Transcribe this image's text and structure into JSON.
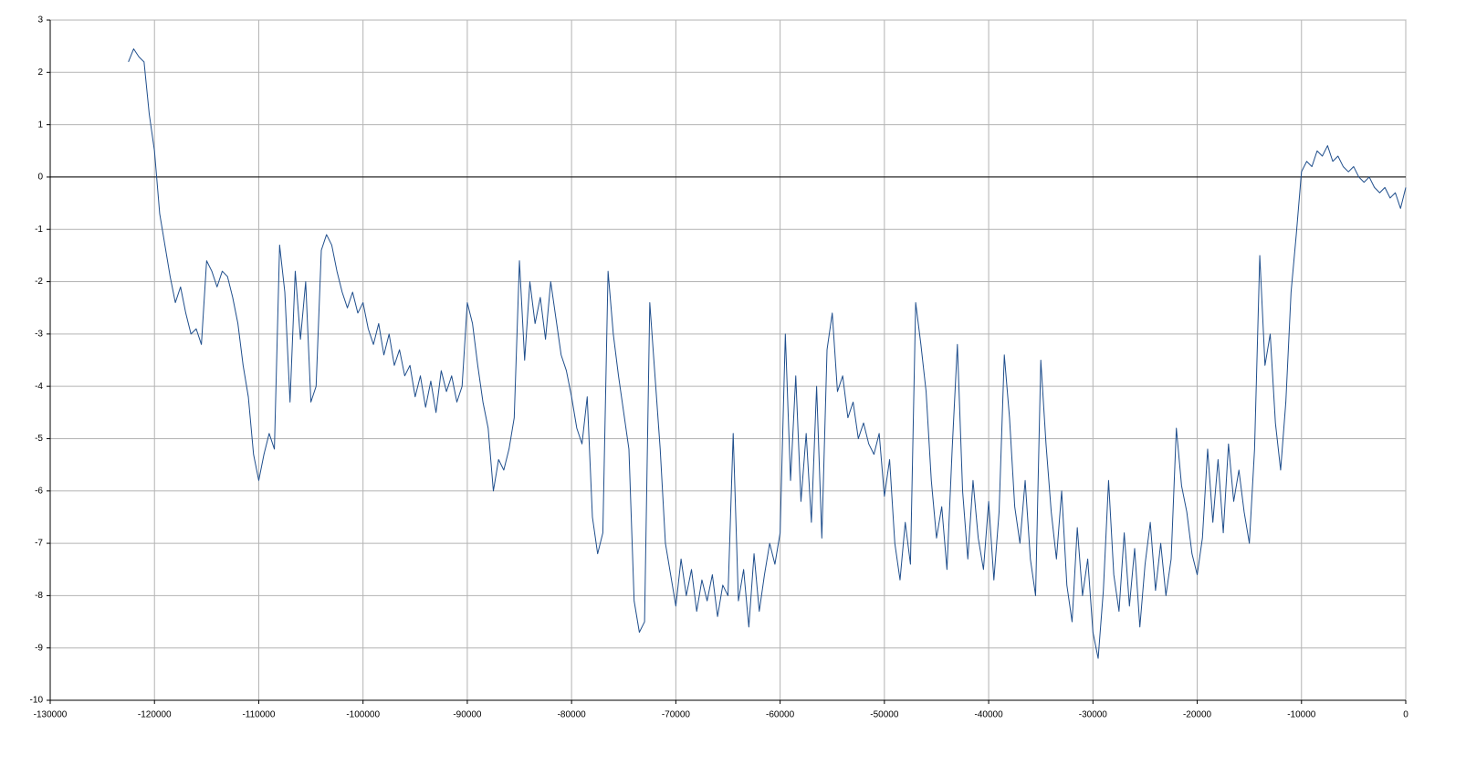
{
  "chart_data": {
    "type": "line",
    "xlim": [
      -130000,
      0
    ],
    "ylim": [
      -10,
      3
    ],
    "xticks": [
      -130000,
      -120000,
      -110000,
      -100000,
      -90000,
      -80000,
      -70000,
      -60000,
      -50000,
      -40000,
      -30000,
      -20000,
      -10000,
      0
    ],
    "yticks": [
      -10,
      -9,
      -8,
      -7,
      -6,
      -5,
      -4,
      -3,
      -2,
      -1,
      0,
      1,
      2,
      3
    ],
    "grid": true,
    "x": [
      -122500,
      -122000,
      -121500,
      -121000,
      -120500,
      -120000,
      -119500,
      -119000,
      -118500,
      -118000,
      -117500,
      -117000,
      -116500,
      -116000,
      -115500,
      -115000,
      -114500,
      -114000,
      -113500,
      -113000,
      -112500,
      -112000,
      -111500,
      -111000,
      -110500,
      -110000,
      -109500,
      -109000,
      -108500,
      -108000,
      -107500,
      -107000,
      -106500,
      -106000,
      -105500,
      -105000,
      -104500,
      -104000,
      -103500,
      -103000,
      -102500,
      -102000,
      -101500,
      -101000,
      -100500,
      -100000,
      -99500,
      -99000,
      -98500,
      -98000,
      -97500,
      -97000,
      -96500,
      -96000,
      -95500,
      -95000,
      -94500,
      -94000,
      -93500,
      -93000,
      -92500,
      -92000,
      -91500,
      -91000,
      -90500,
      -90000,
      -89500,
      -89000,
      -88500,
      -88000,
      -87500,
      -87000,
      -86500,
      -86000,
      -85500,
      -85000,
      -84500,
      -84000,
      -83500,
      -83000,
      -82500,
      -82000,
      -81500,
      -81000,
      -80500,
      -80000,
      -79500,
      -79000,
      -78500,
      -78000,
      -77500,
      -77000,
      -76500,
      -76000,
      -75500,
      -75000,
      -74500,
      -74000,
      -73500,
      -73000,
      -72500,
      -72000,
      -71500,
      -71000,
      -70500,
      -70000,
      -69500,
      -69000,
      -68500,
      -68000,
      -67500,
      -67000,
      -66500,
      -66000,
      -65500,
      -65000,
      -64500,
      -64000,
      -63500,
      -63000,
      -62500,
      -62000,
      -61500,
      -61000,
      -60500,
      -60000,
      -59500,
      -59000,
      -58500,
      -58000,
      -57500,
      -57000,
      -56500,
      -56000,
      -55500,
      -55000,
      -54500,
      -54000,
      -53500,
      -53000,
      -52500,
      -52000,
      -51500,
      -51000,
      -50500,
      -50000,
      -49500,
      -49000,
      -48500,
      -48000,
      -47500,
      -47000,
      -46500,
      -46000,
      -45500,
      -45000,
      -44500,
      -44000,
      -43500,
      -43000,
      -42500,
      -42000,
      -41500,
      -41000,
      -40500,
      -40000,
      -39500,
      -39000,
      -38500,
      -38000,
      -37500,
      -37000,
      -36500,
      -36000,
      -35500,
      -35000,
      -34500,
      -34000,
      -33500,
      -33000,
      -32500,
      -32000,
      -31500,
      -31000,
      -30500,
      -30000,
      -29500,
      -29000,
      -28500,
      -28000,
      -27500,
      -27000,
      -26500,
      -26000,
      -25500,
      -25000,
      -24500,
      -24000,
      -23500,
      -23000,
      -22500,
      -22000,
      -21500,
      -21000,
      -20500,
      -20000,
      -19500,
      -19000,
      -18500,
      -18000,
      -17500,
      -17000,
      -16500,
      -16000,
      -15500,
      -15000,
      -14500,
      -14000,
      -13500,
      -13000,
      -12500,
      -12000,
      -11500,
      -11000,
      -10500,
      -10000,
      -9500,
      -9000,
      -8500,
      -8000,
      -7500,
      -7000,
      -6500,
      -6000,
      -5500,
      -5000,
      -4500,
      -4000,
      -3500,
      -3000,
      -2500,
      -2000,
      -1500,
      -1000,
      -500,
      0
    ],
    "series": [
      {
        "color": "#1f4e8c",
        "values": [
          2.2,
          2.45,
          2.3,
          2.2,
          1.2,
          0.5,
          -0.7,
          -1.3,
          -1.9,
          -2.4,
          -2.1,
          -2.6,
          -3.0,
          -2.9,
          -3.2,
          -1.6,
          -1.8,
          -2.1,
          -1.8,
          -1.9,
          -2.3,
          -2.8,
          -3.6,
          -4.2,
          -5.3,
          -5.8,
          -5.3,
          -4.9,
          -5.2,
          -1.3,
          -2.2,
          -4.3,
          -1.8,
          -3.1,
          -2.0,
          -4.3,
          -4.0,
          -1.4,
          -1.1,
          -1.3,
          -1.8,
          -2.2,
          -2.5,
          -2.2,
          -2.6,
          -2.4,
          -2.9,
          -3.2,
          -2.8,
          -3.4,
          -3.0,
          -3.6,
          -3.3,
          -3.8,
          -3.6,
          -4.2,
          -3.8,
          -4.4,
          -3.9,
          -4.5,
          -3.7,
          -4.1,
          -3.8,
          -4.3,
          -4.0,
          -2.4,
          -2.8,
          -3.6,
          -4.3,
          -4.8,
          -6.0,
          -5.4,
          -5.6,
          -5.2,
          -4.6,
          -1.6,
          -3.5,
          -2.0,
          -2.8,
          -2.3,
          -3.1,
          -2.0,
          -2.7,
          -3.4,
          -3.7,
          -4.2,
          -4.8,
          -5.1,
          -4.2,
          -6.5,
          -7.2,
          -6.8,
          -1.8,
          -3.0,
          -3.8,
          -4.5,
          -5.2,
          -8.1,
          -8.7,
          -8.5,
          -2.4,
          -3.8,
          -5.2,
          -7.0,
          -7.6,
          -8.2,
          -7.3,
          -8.0,
          -7.5,
          -8.3,
          -7.7,
          -8.1,
          -7.6,
          -8.4,
          -7.8,
          -8.0,
          -4.9,
          -8.1,
          -7.5,
          -8.6,
          -7.2,
          -8.3,
          -7.6,
          -7.0,
          -7.4,
          -6.8,
          -3.0,
          -5.8,
          -3.8,
          -6.2,
          -4.9,
          -6.6,
          -4.0,
          -6.9,
          -3.3,
          -2.6,
          -4.1,
          -3.8,
          -4.6,
          -4.3,
          -5.0,
          -4.7,
          -5.1,
          -5.3,
          -4.9,
          -6.1,
          -5.4,
          -7.0,
          -7.7,
          -6.6,
          -7.4,
          -2.4,
          -3.2,
          -4.1,
          -5.8,
          -6.9,
          -6.3,
          -7.5,
          -5.2,
          -3.2,
          -6.0,
          -7.3,
          -5.8,
          -6.9,
          -7.5,
          -6.2,
          -7.7,
          -6.4,
          -3.4,
          -4.6,
          -6.3,
          -7.0,
          -5.8,
          -7.3,
          -8.0,
          -3.5,
          -5.1,
          -6.4,
          -7.3,
          -6.0,
          -7.8,
          -8.5,
          -6.7,
          -8.0,
          -7.3,
          -8.7,
          -9.2,
          -7.9,
          -5.8,
          -7.6,
          -8.3,
          -6.8,
          -8.2,
          -7.1,
          -8.6,
          -7.4,
          -6.6,
          -7.9,
          -7.0,
          -8.0,
          -7.3,
          -4.8,
          -5.9,
          -6.4,
          -7.2,
          -7.6,
          -6.9,
          -5.2,
          -6.6,
          -5.4,
          -6.8,
          -5.1,
          -6.2,
          -5.6,
          -6.4,
          -7.0,
          -5.2,
          -1.5,
          -3.6,
          -3.0,
          -4.7,
          -5.6,
          -4.3,
          -2.2,
          -1.1,
          0.1,
          0.3,
          0.2,
          0.5,
          0.4,
          0.6,
          0.3,
          0.4,
          0.2,
          0.1,
          0.2,
          0.0,
          -0.1,
          0.0,
          -0.2,
          -0.3,
          -0.2,
          -0.4,
          -0.3,
          -0.6,
          -0.2
        ]
      }
    ]
  }
}
